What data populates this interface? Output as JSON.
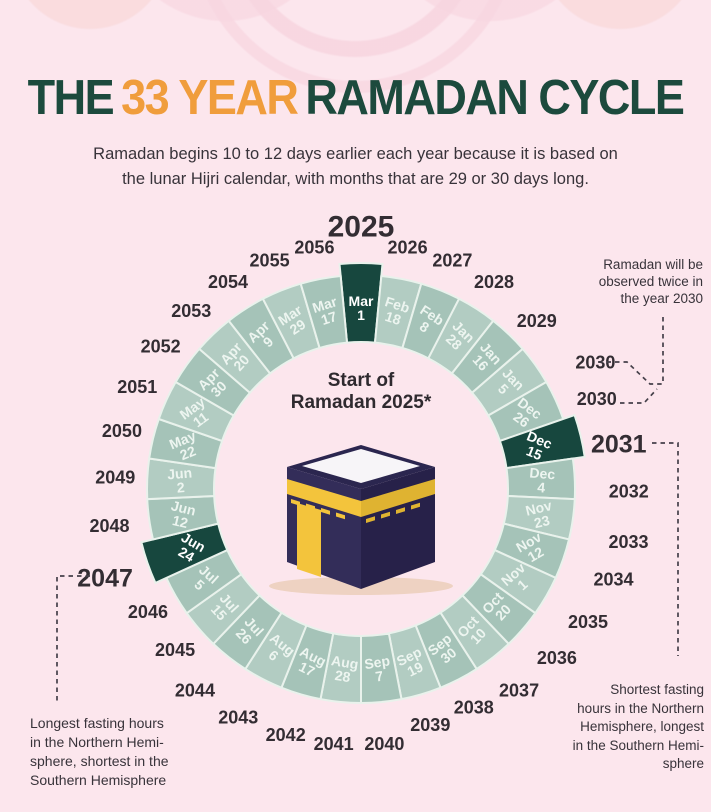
{
  "title": {
    "part1": "THE",
    "part2": "33 YEAR",
    "part3": "RAMADAN CYCLE",
    "green": "#1c4a3d",
    "orange": "#f09d3c"
  },
  "subtitle": {
    "l1": "Ramadan begins 10 to 12 days earlier each year because it is based on",
    "l2": "the lunar Hijri calendar, with months that are 29 or 30 days long."
  },
  "wheel": {
    "center_line1": "Start of",
    "center_line2": "Ramadan 2025*",
    "colors": {
      "segment": "#a5c3b8",
      "segment_alt": "#b2ccc2",
      "highlight": "#17473e",
      "divider": "#e9f2ec",
      "date_text": "#edf5f0",
      "year_text": "#332d33"
    },
    "entries": [
      {
        "year": "2025",
        "month": "Mar",
        "day": "1",
        "highlight": true,
        "emphasis": "primary"
      },
      {
        "year": "2026",
        "month": "Feb",
        "day": "18",
        "highlight": false,
        "emphasis": null
      },
      {
        "year": "2027",
        "month": "Feb",
        "day": "8",
        "highlight": false,
        "emphasis": null
      },
      {
        "year": "2028",
        "month": "Jan",
        "day": "28",
        "highlight": false,
        "emphasis": null
      },
      {
        "year": "2029",
        "month": "Jan",
        "day": "16",
        "highlight": false,
        "emphasis": null
      },
      {
        "year": "2030",
        "month": "Jan",
        "day": "5",
        "highlight": false,
        "emphasis": null
      },
      {
        "year": "2030",
        "month": "Dec",
        "day": "26",
        "highlight": false,
        "emphasis": null
      },
      {
        "year": "2031",
        "month": "Dec",
        "day": "15",
        "highlight": true,
        "emphasis": "secondary"
      },
      {
        "year": "2032",
        "month": "Dec",
        "day": "4",
        "highlight": false,
        "emphasis": null
      },
      {
        "year": "2033",
        "month": "Nov",
        "day": "23",
        "highlight": false,
        "emphasis": null
      },
      {
        "year": "2034",
        "month": "Nov",
        "day": "12",
        "highlight": false,
        "emphasis": null
      },
      {
        "year": "2035",
        "month": "Nov",
        "day": "1",
        "highlight": false,
        "emphasis": null
      },
      {
        "year": "2036",
        "month": "Oct",
        "day": "20",
        "highlight": false,
        "emphasis": null
      },
      {
        "year": "2037",
        "month": "Oct",
        "day": "10",
        "highlight": false,
        "emphasis": null
      },
      {
        "year": "2038",
        "month": "Sep",
        "day": "30",
        "highlight": false,
        "emphasis": null
      },
      {
        "year": "2039",
        "month": "Sep",
        "day": "19",
        "highlight": false,
        "emphasis": null
      },
      {
        "year": "2040",
        "month": "Sep",
        "day": "7",
        "highlight": false,
        "emphasis": null
      },
      {
        "year": "2041",
        "month": "Aug",
        "day": "28",
        "highlight": false,
        "emphasis": null
      },
      {
        "year": "2042",
        "month": "Aug",
        "day": "17",
        "highlight": false,
        "emphasis": null
      },
      {
        "year": "2043",
        "month": "Aug",
        "day": "6",
        "highlight": false,
        "emphasis": null
      },
      {
        "year": "2044",
        "month": "Jul",
        "day": "26",
        "highlight": false,
        "emphasis": null
      },
      {
        "year": "2045",
        "month": "Jul",
        "day": "15",
        "highlight": false,
        "emphasis": null
      },
      {
        "year": "2046",
        "month": "Jul",
        "day": "5",
        "highlight": false,
        "emphasis": null
      },
      {
        "year": "2047",
        "month": "Jun",
        "day": "24",
        "highlight": true,
        "emphasis": "secondary"
      },
      {
        "year": "2048",
        "month": "Jun",
        "day": "12",
        "highlight": false,
        "emphasis": null
      },
      {
        "year": "2049",
        "month": "Jun",
        "day": "2",
        "highlight": false,
        "emphasis": null
      },
      {
        "year": "2050",
        "month": "May",
        "day": "22",
        "highlight": false,
        "emphasis": null
      },
      {
        "year": "2051",
        "month": "May",
        "day": "11",
        "highlight": false,
        "emphasis": null
      },
      {
        "year": "2052",
        "month": "Apr",
        "day": "30",
        "highlight": false,
        "emphasis": null
      },
      {
        "year": "2053",
        "month": "Apr",
        "day": "20",
        "highlight": false,
        "emphasis": null
      },
      {
        "year": "2054",
        "month": "Apr",
        "day": "9",
        "highlight": false,
        "emphasis": null
      },
      {
        "year": "2055",
        "month": "Mar",
        "day": "29",
        "highlight": false,
        "emphasis": null
      },
      {
        "year": "2056",
        "month": "Mar",
        "day": "17",
        "highlight": false,
        "emphasis": null
      }
    ]
  },
  "annotations": {
    "twice": {
      "l1": "Ramadan will be",
      "l2": "observed twice in",
      "l3": "the year 2030"
    },
    "shortest": {
      "l1": "Shortest fasting",
      "l2": "hours in the Northern",
      "l3": "Hemisphere, longest",
      "l4": "in the Southern Hemi-",
      "l5": "sphere"
    },
    "longest": {
      "l1": "Longest fasting hours",
      "l2": "in the Northern Hemi-",
      "l3": "sphere, shortest in the",
      "l4": "Southern Hemisphere"
    }
  }
}
